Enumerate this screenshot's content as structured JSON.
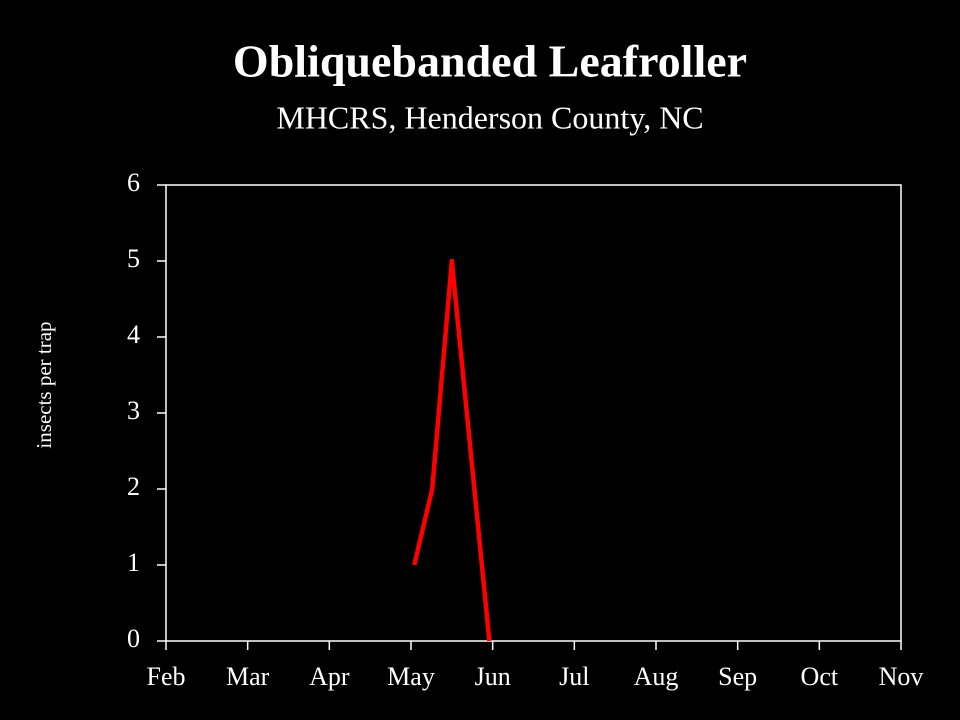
{
  "chart_data": {
    "type": "line",
    "title": "Obliquebanded Leafroller",
    "subtitle": "MHCRS, Henderson County, NC",
    "y_label": "insects per trap",
    "x": [
      5.04,
      5.26,
      5.5,
      5.96
    ],
    "series": [
      {
        "name": "insects per trap",
        "color": "#ff0000",
        "values": [
          1,
          2,
          5,
          0
        ]
      }
    ],
    "xlim": [
      2,
      11
    ],
    "xticks": [
      {
        "value": 2,
        "label": "Feb"
      },
      {
        "value": 3,
        "label": "Mar"
      },
      {
        "value": 4,
        "label": "Apr"
      },
      {
        "value": 5,
        "label": "May"
      },
      {
        "value": 6,
        "label": "Jun"
      },
      {
        "value": 7,
        "label": "Jul"
      },
      {
        "value": 8,
        "label": "Aug"
      },
      {
        "value": 9,
        "label": "Sep"
      },
      {
        "value": 10,
        "label": "Oct"
      },
      {
        "value": 11,
        "label": "Nov"
      }
    ],
    "ylim": [
      0,
      6
    ],
    "yticks": [
      0,
      1,
      2,
      3,
      4,
      5,
      6
    ],
    "grid": false
  }
}
